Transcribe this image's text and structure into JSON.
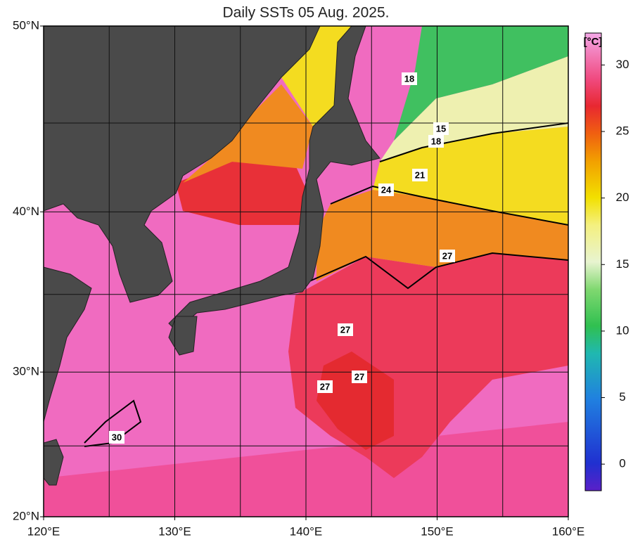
{
  "title": "Daily SSTs 05 Aug. 2025.",
  "map": {
    "lon_lim": [
      120,
      160
    ],
    "lat_lim": [
      20,
      50
    ],
    "projection": "mercator",
    "lon_ticks": [
      {
        "value": 120,
        "label": "120°E"
      },
      {
        "value": 130,
        "label": "130°E"
      },
      {
        "value": 140,
        "label": "140°E"
      },
      {
        "value": 150,
        "label": "150°E"
      },
      {
        "value": 160,
        "label": "160°E"
      }
    ],
    "lat_ticks": [
      {
        "value": 20,
        "label": "20°N"
      },
      {
        "value": 30,
        "label": "30°N"
      },
      {
        "value": 40,
        "label": "40°N"
      },
      {
        "value": 50,
        "label": "50°N"
      }
    ],
    "grid_lons": [
      120,
      125,
      130,
      135,
      140,
      145,
      150,
      155,
      160
    ],
    "grid_lats": [
      20,
      25,
      30,
      35,
      40,
      45,
      50
    ],
    "contour_labels": [
      "18",
      "15",
      "18",
      "21",
      "24",
      "27",
      "27",
      "27",
      "27",
      "30"
    ]
  },
  "colorbar": {
    "unit": "[°C]",
    "vlim": [
      -2,
      32.4
    ],
    "ticks": [
      0,
      5,
      10,
      15,
      20,
      25,
      30
    ]
  }
}
